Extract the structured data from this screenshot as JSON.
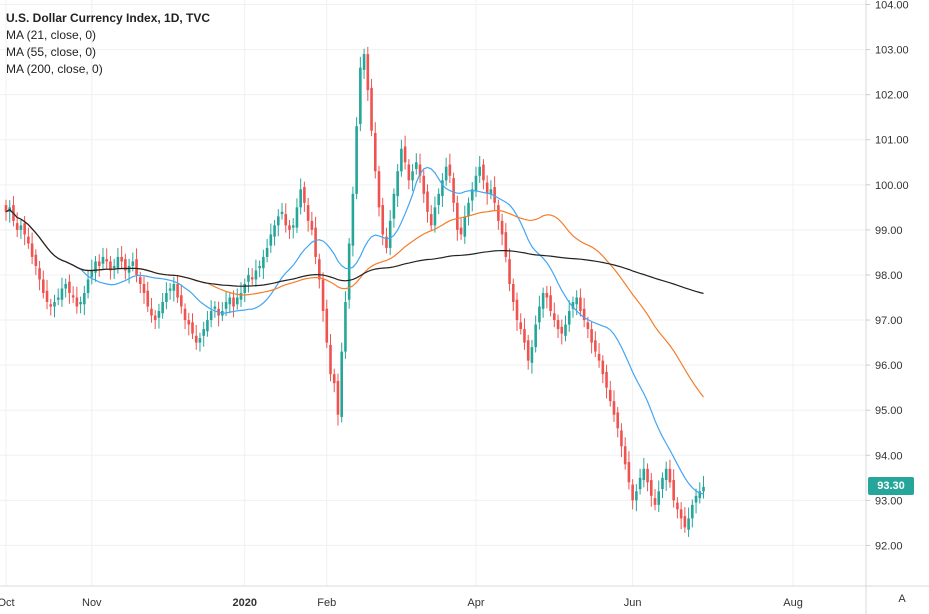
{
  "legend": {
    "title": "U.S. Dollar Currency Index, 1D, TVC",
    "ma21": "MA (21, close, 0)",
    "ma55": "MA (55, close, 0)",
    "ma200": "MA (200, close, 0)"
  },
  "last_price_label": "93.30",
  "auto_scale_label": "A",
  "colors": {
    "up": "#26a69a",
    "down": "#ef5350",
    "ma21": "#42a5f5",
    "ma55": "#f57c28",
    "ma200": "#222222",
    "price_tag": "#26a69a"
  },
  "chart_data": {
    "type": "candlestick",
    "title": "U.S. Dollar Currency Index, 1D, TVC",
    "y_ticks": [
      "104.00",
      "103.00",
      "102.00",
      "101.00",
      "100.00",
      "99.00",
      "98.00",
      "97.00",
      "96.00",
      "95.00",
      "94.00",
      "93.00",
      "92.00"
    ],
    "ylim": [
      91.1,
      104.1
    ],
    "x_ticks": [
      {
        "label": "Oct",
        "bold": false,
        "i": 0
      },
      {
        "label": "Nov",
        "bold": false,
        "i": 23
      },
      {
        "label": "2020",
        "bold": true,
        "i": 64
      },
      {
        "label": "Feb",
        "bold": false,
        "i": 86
      },
      {
        "label": "Apr",
        "bold": false,
        "i": 126
      },
      {
        "label": "Jun",
        "bold": false,
        "i": 168
      },
      {
        "label": "Aug",
        "bold": false,
        "i": 211
      }
    ],
    "grid": true,
    "last_price": 93.3,
    "candles_close": [
      99.4,
      99.5,
      99.2,
      99.0,
      99.1,
      98.9,
      98.7,
      98.4,
      98.2,
      97.9,
      97.6,
      97.4,
      97.3,
      97.4,
      97.5,
      97.7,
      97.8,
      97.6,
      97.5,
      97.3,
      97.4,
      97.6,
      97.9,
      98.1,
      98.3,
      98.2,
      98.4,
      98.3,
      98.1,
      98.2,
      98.4,
      98.3,
      98.1,
      98.2,
      98.3,
      98.0,
      97.8,
      97.6,
      97.3,
      97.1,
      97.0,
      97.2,
      97.4,
      97.6,
      97.7,
      97.8,
      97.5,
      97.3,
      97.0,
      96.9,
      96.7,
      96.5,
      96.6,
      96.8,
      97.0,
      97.2,
      97.3,
      97.1,
      97.2,
      97.4,
      97.5,
      97.3,
      97.5,
      97.6,
      97.8,
      98.0,
      97.9,
      98.1,
      98.2,
      98.4,
      98.6,
      98.9,
      99.1,
      99.3,
      99.4,
      99.1,
      99.0,
      99.1,
      99.5,
      99.9,
      99.6,
      99.2,
      99.0,
      98.4,
      97.9,
      97.2,
      96.5,
      95.8,
      95.6,
      94.9,
      96.3,
      97.4,
      98.7,
      99.8,
      101.3,
      102.6,
      102.9,
      102.1,
      101.2,
      100.3,
      99.5,
      98.9,
      98.6,
      99.2,
      99.8,
      100.3,
      100.8,
      100.5,
      100.1,
      100.3,
      100.5,
      100.2,
      99.8,
      99.4,
      99.1,
      99.5,
      99.8,
      100.1,
      100.4,
      100.2,
      99.6,
      99.0,
      98.9,
      99.3,
      99.6,
      99.9,
      100.2,
      100.4,
      100.1,
      99.8,
      99.9,
      99.6,
      99.2,
      98.9,
      98.4,
      97.8,
      97.4,
      97.0,
      96.8,
      96.5,
      96.1,
      96.4,
      96.9,
      97.3,
      97.6,
      97.5,
      97.2,
      97.0,
      96.8,
      96.7,
      96.9,
      97.2,
      97.4,
      97.5,
      97.2,
      97.0,
      96.8,
      96.5,
      96.3,
      96.1,
      95.8,
      95.5,
      95.2,
      94.9,
      94.6,
      94.2,
      93.8,
      93.4,
      93.0,
      93.2,
      93.5,
      93.7,
      93.4,
      93.1,
      92.9,
      93.2,
      93.5,
      93.7,
      93.4,
      93.0,
      92.8,
      92.6,
      92.4,
      92.6,
      92.9,
      93.1,
      93.2,
      93.3
    ]
  }
}
